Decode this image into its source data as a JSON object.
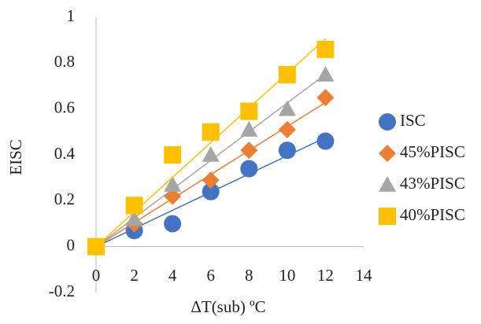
{
  "chart_data": {
    "type": "scatter",
    "x_label": "ΔT(sub) ºC",
    "y_label": "EISC",
    "x": [
      0,
      2,
      4,
      6,
      8,
      10,
      12
    ],
    "series": [
      {
        "name": "ISC",
        "color": "#4472c4",
        "marker": "circle",
        "values": [
          0,
          0.07,
          0.1,
          0.24,
          0.34,
          0.42,
          0.46
        ]
      },
      {
        "name": "45%PISC",
        "color": "#ed7d31",
        "marker": "diamond",
        "values": [
          0,
          0.1,
          0.22,
          0.29,
          0.42,
          0.51,
          0.65
        ]
      },
      {
        "name": "43%PISC",
        "color": "#a5a5a5",
        "marker": "triangle",
        "values": [
          0,
          0.12,
          0.27,
          0.4,
          0.51,
          0.6,
          0.75
        ]
      },
      {
        "name": "40%PISC",
        "color": "#ffc000",
        "marker": "square",
        "values": [
          0,
          0.18,
          0.4,
          0.5,
          0.59,
          0.75,
          0.86
        ]
      }
    ],
    "xlim": [
      0,
      14
    ],
    "xticks": [
      0,
      2,
      4,
      6,
      8,
      10,
      12,
      14
    ],
    "ylim": [
      -0.2,
      1
    ],
    "yticks": [
      -0.2,
      0,
      0.2,
      0.4,
      0.6,
      0.8,
      1
    ],
    "trendline": true,
    "legend": "right"
  }
}
